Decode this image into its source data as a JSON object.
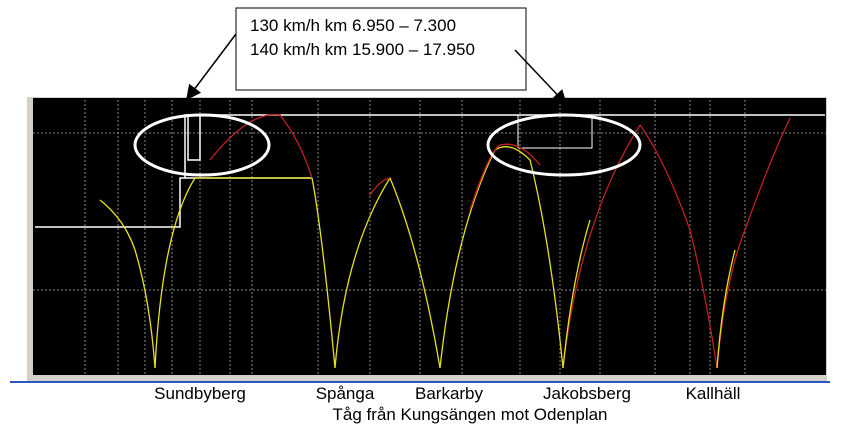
{
  "annotation": {
    "lines": [
      "130 km/h km 6.950 – 7.300",
      "140 km/h km 15.900 – 17.950"
    ]
  },
  "stations": [
    "Sundbyberg",
    "Spånga",
    "Barkarby",
    "Jakobsberg",
    "Kallhäll"
  ],
  "caption": "Tåg från Kungsängen mot Odenplan"
}
